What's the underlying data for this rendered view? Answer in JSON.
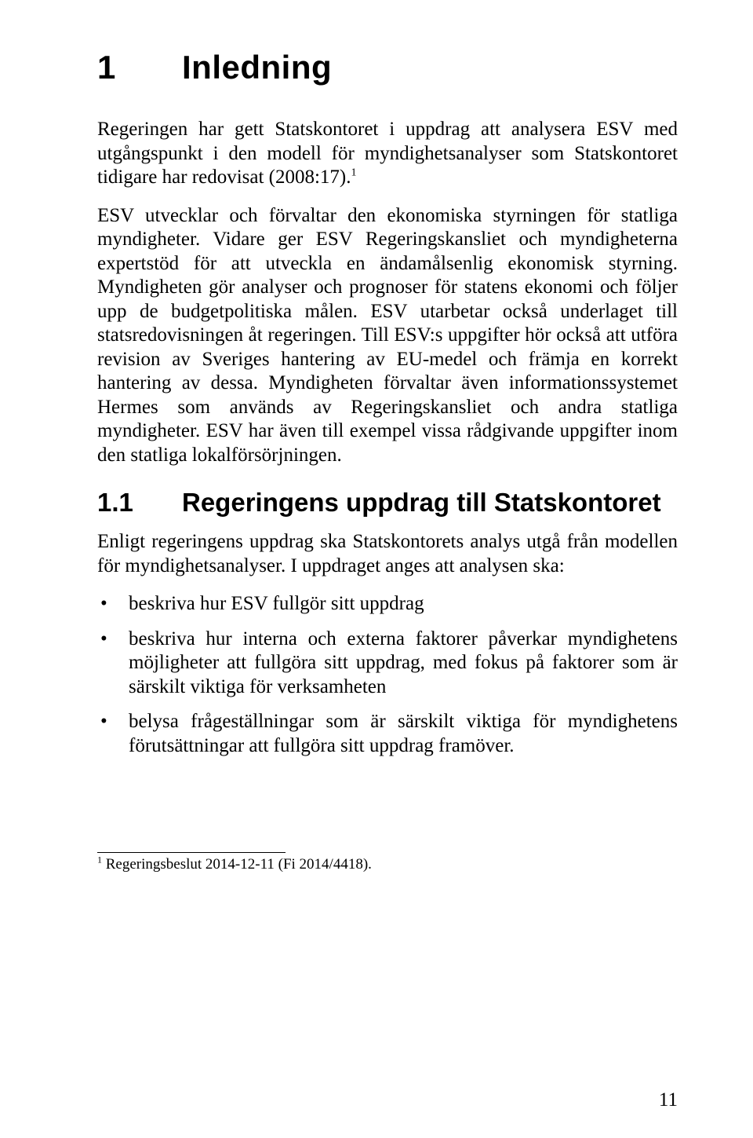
{
  "chapter": {
    "number": "1",
    "title": "Inledning"
  },
  "paragraphs": {
    "p1_pre": "Regeringen har gett Statskontoret i uppdrag att analysera ESV med utgångspunkt i den modell för myndighetsanalyser som Statskontoret tidigare har redovisat (2008:17).",
    "p1_sup": "1",
    "p2": "ESV utvecklar och förvaltar den ekonomiska styrningen för statliga myndigheter. Vidare ger ESV Regeringskansliet och myndigheterna expertstöd för att utveckla en ändamålsenlig ekonomisk styrning. Myndigheten gör analyser och prognoser för statens ekonomi och följer upp de budgetpolitiska målen. ESV utarbetar också underlaget till statsredovisningen åt regeringen. Till ESV:s uppgifter hör också att utföra revision av Sveriges hantering av EU-medel och främja en korrekt hantering av dessa. Myndigheten förvaltar även informationssystemet Hermes som används av Regeringskansliet och andra statliga myndigheter. ESV har även till exempel vissa rådgivande uppgifter inom den statliga lokalförsörjningen.",
    "p3": "Enligt regeringens uppdrag ska Statskontorets analys utgå från modellen för myndighetsanalyser. I uppdraget anges att analysen ska:"
  },
  "section": {
    "number": "1.1",
    "title": "Regeringens uppdrag till Statskontoret"
  },
  "bullets": [
    "beskriva hur ESV fullgör sitt uppdrag",
    "beskriva hur interna och externa faktorer påverkar myndighetens möjligheter att fullgöra sitt uppdrag, med fokus på faktorer som är särskilt viktiga för verksamheten",
    "belysa frågeställningar som är särskilt viktiga för myndighetens förutsättningar att fullgöra sitt uppdrag framöver."
  ],
  "footnote": {
    "marker": "1",
    "text": " Regeringsbeslut 2014-12-11 (Fi 2014/4418)."
  },
  "pageNumber": "11"
}
